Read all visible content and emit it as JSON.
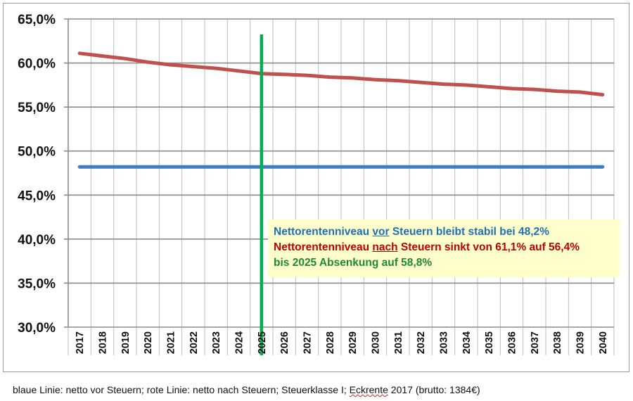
{
  "chart_data": {
    "type": "line",
    "categories": [
      "2017",
      "2018",
      "2019",
      "2020",
      "2021",
      "2022",
      "2023",
      "2024",
      "2025",
      "2026",
      "2027",
      "2028",
      "2029",
      "2030",
      "2031",
      "2032",
      "2033",
      "2034",
      "2035",
      "2036",
      "2037",
      "2038",
      "2039",
      "2040"
    ],
    "series": [
      {
        "values": [
          48.2,
          48.2,
          48.2,
          48.2,
          48.2,
          48.2,
          48.2,
          48.2,
          48.2,
          48.2,
          48.2,
          48.2,
          48.2,
          48.2,
          48.2,
          48.2,
          48.2,
          48.2,
          48.2,
          48.2,
          48.2,
          48.2,
          48.2,
          48.2
        ],
        "color": "#3f7fc0"
      },
      {
        "values": [
          61.1,
          60.8,
          60.5,
          60.1,
          59.8,
          59.6,
          59.4,
          59.1,
          58.8,
          58.7,
          58.6,
          58.4,
          58.3,
          58.1,
          58.0,
          57.8,
          57.6,
          57.5,
          57.3,
          57.1,
          57.0,
          56.8,
          56.7,
          56.4
        ],
        "color": "#c0504d"
      }
    ],
    "marker": {
      "x": "2025",
      "color": "#00b050"
    },
    "ylim": [
      30,
      65
    ],
    "ytick_labels": [
      "30,0%",
      "35,0%",
      "40,0%",
      "45,0%",
      "50,0%",
      "55,0%",
      "60,0%",
      "65,0%"
    ],
    "grid": true
  },
  "annotation": {
    "line1_part1": "Nettorentenniveau ",
    "line1_emph": "vor",
    "line1_part2": " Steuern bleibt stabil bei 48,2%",
    "line2_part1": "Nettorentenniveau ",
    "line2_emph": "nach",
    "line2_part2": " Steuern sinkt von 61,1% auf 56,4%",
    "line3": "bis 2025 Absenkung auf 58,8%",
    "colors": {
      "line1": "#1f6fb5",
      "line2": "#c00000",
      "line3": "#1e8a2e",
      "background": "#ffffcc"
    }
  },
  "caption": {
    "part1": "blaue Linie: netto vor Steuern; rote Linie: netto nach Steuern; Steuerklasse I; ",
    "squiggle": "Eckrente",
    "part2": " 2017 (brutto: 1384€)"
  }
}
